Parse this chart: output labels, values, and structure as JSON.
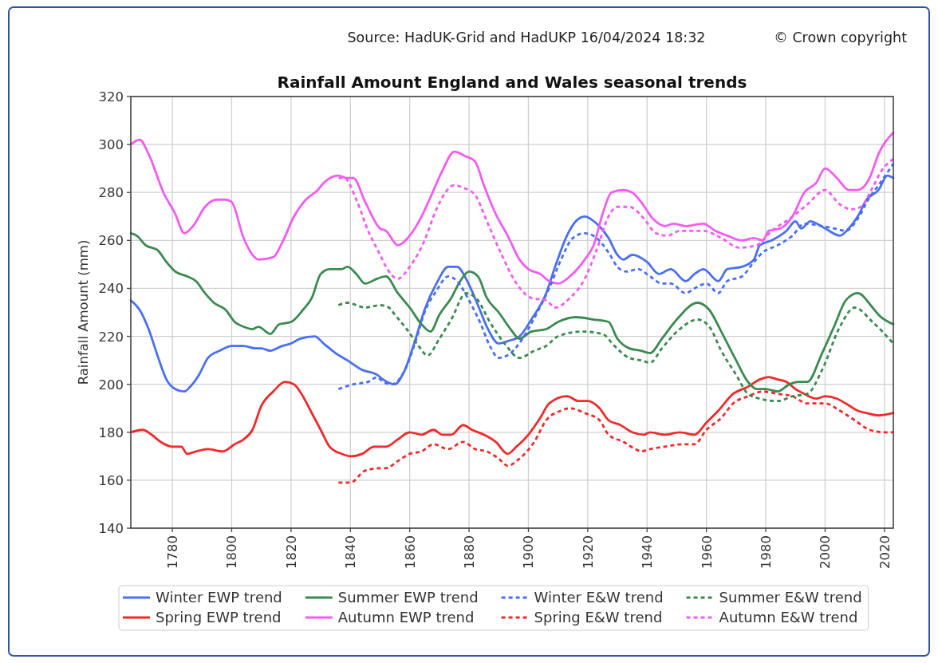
{
  "chart_data": {
    "type": "line",
    "title": "Rainfall Amount England and Wales seasonal trends",
    "ylabel": "Rainfall Amount (mm)",
    "annotations": [
      "Source: HadUK-Grid and HadUKP 16/04/2024 18:32",
      "© Crown copyright"
    ],
    "xlim": [
      1766,
      2023
    ],
    "xticks": [
      1780,
      1800,
      1820,
      1840,
      1860,
      1880,
      1900,
      1920,
      1940,
      1960,
      1980,
      2000,
      2020
    ],
    "ylim": [
      140,
      320
    ],
    "yticks": [
      140,
      160,
      180,
      200,
      220,
      240,
      260,
      280,
      300,
      320
    ],
    "grid": true,
    "legend": "bottom",
    "series": [
      {
        "name": "Winter EWP trend",
        "color": "#4a6ff0",
        "line_style": "solid",
        "x": [
          1766,
          1769,
          1772,
          1775,
          1778,
          1781,
          1784,
          1786,
          1789,
          1792,
          1796,
          1800,
          1804,
          1808,
          1810,
          1813,
          1817,
          1820,
          1823,
          1828,
          1831,
          1835,
          1839,
          1844,
          1849,
          1851,
          1855,
          1858,
          1862,
          1865,
          1869,
          1873,
          1876,
          1879,
          1883,
          1886,
          1890,
          1893,
          1897,
          1901,
          1906,
          1909,
          1913,
          1916,
          1919,
          1923,
          1927,
          1930,
          1932,
          1935,
          1940,
          1944,
          1948,
          1953,
          1956,
          1959,
          1964,
          1967,
          1972,
          1976,
          1978,
          1982,
          1987,
          1990,
          1992,
          1995,
          2000,
          2005,
          2008,
          2011,
          2014,
          2018,
          2021,
          2023
        ],
        "values": [
          235,
          231,
          223,
          212,
          202,
          198,
          197,
          199,
          204,
          211,
          214,
          216,
          216,
          215,
          215,
          214,
          216,
          217,
          219,
          220,
          217,
          213,
          210,
          206,
          204,
          202,
          200,
          205,
          219,
          231,
          242,
          249,
          249,
          244,
          233,
          224,
          217,
          218,
          220,
          227,
          238,
          249,
          262,
          268,
          270,
          267,
          261,
          254,
          252,
          254,
          251,
          246,
          248,
          243,
          246,
          248,
          243,
          248,
          249,
          252,
          258,
          260,
          264,
          268,
          265,
          268,
          265,
          262,
          265,
          270,
          277,
          281,
          287,
          286
        ]
      },
      {
        "name": "Spring EWP trend",
        "color": "#ee2b2b",
        "line_style": "solid",
        "x": [
          1766,
          1770,
          1773,
          1776,
          1780,
          1783,
          1785,
          1788,
          1792,
          1797,
          1801,
          1804,
          1807,
          1810,
          1814,
          1818,
          1821,
          1824,
          1827,
          1830,
          1833,
          1837,
          1840,
          1844,
          1848,
          1852,
          1856,
          1860,
          1864,
          1868,
          1871,
          1874,
          1878,
          1881,
          1885,
          1889,
          1893,
          1896,
          1900,
          1904,
          1907,
          1913,
          1917,
          1920,
          1924,
          1927,
          1931,
          1935,
          1939,
          1941,
          1946,
          1951,
          1956,
          1960,
          1964,
          1969,
          1974,
          1978,
          1981,
          1984,
          1987,
          1990,
          1993,
          1997,
          2000,
          2004,
          2007,
          2011,
          2014,
          2018,
          2023
        ],
        "values": [
          180,
          181,
          179,
          176,
          174,
          174,
          171,
          172,
          173,
          172,
          175,
          177,
          181,
          191,
          197,
          201,
          200,
          195,
          188,
          181,
          174,
          171,
          170,
          171,
          174,
          174,
          177,
          180,
          179,
          181,
          179,
          179,
          183,
          181,
          179,
          176,
          171,
          174,
          179,
          186,
          192,
          195,
          193,
          193,
          190,
          185,
          183,
          180,
          179,
          180,
          179,
          180,
          179,
          184,
          189,
          196,
          199,
          202,
          203,
          202,
          201,
          198,
          196,
          194,
          195,
          194,
          192,
          189,
          188,
          187,
          188
        ]
      },
      {
        "name": "Summer EWP trend",
        "color": "#3a8a50",
        "line_style": "solid",
        "x": [
          1766,
          1768,
          1771,
          1775,
          1778,
          1781,
          1785,
          1788,
          1791,
          1794,
          1798,
          1801,
          1804,
          1807,
          1809,
          1813,
          1816,
          1820,
          1824,
          1827,
          1830,
          1833,
          1837,
          1839,
          1842,
          1845,
          1849,
          1852,
          1856,
          1860,
          1864,
          1867,
          1870,
          1874,
          1877,
          1880,
          1883,
          1886,
          1890,
          1894,
          1897,
          1901,
          1906,
          1910,
          1916,
          1922,
          1927,
          1930,
          1934,
          1938,
          1941,
          1945,
          1950,
          1957,
          1961,
          1965,
          1970,
          1974,
          1977,
          1980,
          1984,
          1988,
          1991,
          1994,
          1999,
          2003,
          2007,
          2011,
          2016,
          2018,
          2023
        ],
        "values": [
          263,
          262,
          258,
          256,
          251,
          247,
          245,
          243,
          238,
          234,
          231,
          226,
          224,
          223,
          224,
          221,
          225,
          226,
          231,
          236,
          246,
          248,
          248,
          249,
          246,
          242,
          244,
          245,
          238,
          232,
          225,
          222,
          229,
          236,
          243,
          247,
          245,
          236,
          230,
          223,
          219,
          222,
          223,
          226,
          228,
          227,
          226,
          219,
          215,
          214,
          213,
          219,
          227,
          234,
          231,
          222,
          210,
          201,
          198,
          198,
          197,
          200,
          201,
          201,
          213,
          224,
          235,
          238,
          232,
          229,
          225
        ]
      },
      {
        "name": "Autumn EWP trend",
        "color": "#f25cf0",
        "line_style": "solid",
        "x": [
          1766,
          1769,
          1772,
          1777,
          1781,
          1784,
          1787,
          1791,
          1795,
          1798,
          1800,
          1804,
          1807,
          1809,
          1814,
          1817,
          1821,
          1825,
          1829,
          1831,
          1836,
          1839,
          1841,
          1845,
          1850,
          1852,
          1856,
          1860,
          1864,
          1867,
          1871,
          1875,
          1879,
          1882,
          1885,
          1889,
          1893,
          1897,
          1900,
          1904,
          1907,
          1910,
          1914,
          1919,
          1922,
          1925,
          1928,
          1932,
          1935,
          1938,
          1942,
          1946,
          1949,
          1953,
          1959,
          1963,
          1967,
          1972,
          1976,
          1979,
          1981,
          1985,
          1989,
          1993,
          1997,
          2000,
          2004,
          2008,
          2011,
          2015,
          2018,
          2023
        ],
        "values": [
          300,
          302,
          296,
          280,
          271,
          263,
          266,
          274,
          277,
          277,
          276,
          261,
          254,
          252,
          253,
          259,
          270,
          277,
          281,
          284,
          287,
          286,
          286,
          276,
          265,
          264,
          258,
          262,
          270,
          278,
          289,
          297,
          295,
          293,
          283,
          271,
          262,
          252,
          248,
          246,
          243,
          242,
          245,
          252,
          258,
          271,
          280,
          281,
          280,
          276,
          269,
          266,
          267,
          266,
          267,
          264,
          262,
          260,
          261,
          260,
          264,
          265,
          270,
          280,
          284,
          290,
          286,
          281,
          281,
          286,
          296,
          305
        ]
      },
      {
        "name": "Winter E&W trend",
        "color": "#4a6ff0",
        "line_style": "dashed",
        "x": [
          1836,
          1841,
          1846,
          1849,
          1851,
          1854,
          1858,
          1862,
          1865,
          1869,
          1873,
          1876,
          1880,
          1884,
          1887,
          1890,
          1894,
          1898,
          1903,
          1907,
          1911,
          1915,
          1919,
          1923,
          1927,
          1930,
          1933,
          1937,
          1941,
          1945,
          1948,
          1953,
          1956,
          1960,
          1964,
          1967,
          1972,
          1976,
          1979,
          1984,
          1989,
          1993,
          1999,
          2003,
          2007,
          2011,
          2015,
          2018,
          2023
        ],
        "values": [
          198,
          200,
          201,
          203,
          201,
          200,
          205,
          218,
          230,
          239,
          245,
          243,
          235,
          225,
          216,
          211,
          213,
          219,
          230,
          240,
          252,
          261,
          263,
          261,
          255,
          249,
          247,
          248,
          245,
          242,
          242,
          238,
          240,
          242,
          238,
          243,
          245,
          251,
          255,
          258,
          262,
          267,
          266,
          265,
          264,
          269,
          278,
          283,
          292
        ]
      },
      {
        "name": "Spring E&W trend",
        "color": "#ee2b2b",
        "line_style": "dashed",
        "x": [
          1836,
          1840,
          1845,
          1850,
          1852,
          1856,
          1860,
          1864,
          1868,
          1873,
          1878,
          1882,
          1886,
          1890,
          1893,
          1897,
          1902,
          1906,
          1911,
          1914,
          1919,
          1924,
          1927,
          1932,
          1936,
          1938,
          1941,
          1946,
          1952,
          1956,
          1960,
          1965,
          1969,
          1974,
          1979,
          1984,
          1989,
          1994,
          2000,
          2005,
          2010,
          2015,
          2020,
          2023
        ],
        "values": [
          159,
          159,
          164,
          165,
          165,
          168,
          171,
          172,
          175,
          173,
          176,
          173,
          172,
          169,
          166,
          169,
          176,
          185,
          189,
          190,
          188,
          185,
          179,
          176,
          173,
          172,
          173,
          174,
          175,
          175,
          181,
          186,
          192,
          195,
          197,
          196,
          195,
          192,
          192,
          189,
          185,
          181,
          180,
          180
        ]
      },
      {
        "name": "Summer E&W trend",
        "color": "#3a8a50",
        "line_style": "dashed",
        "x": [
          1836,
          1839,
          1845,
          1850,
          1853,
          1855,
          1859,
          1863,
          1866,
          1870,
          1874,
          1879,
          1883,
          1887,
          1892,
          1897,
          1902,
          1906,
          1910,
          1918,
          1925,
          1929,
          1934,
          1938,
          1941,
          1945,
          1951,
          1957,
          1961,
          1965,
          1970,
          1974,
          1978,
          1984,
          1989,
          1994,
          1999,
          2005,
          2010,
          2016,
          2023
        ],
        "values": [
          233,
          234,
          232,
          233,
          232,
          229,
          223,
          216,
          212,
          219,
          227,
          238,
          235,
          226,
          217,
          211,
          214,
          216,
          220,
          222,
          221,
          216,
          211,
          210,
          209,
          215,
          223,
          227,
          224,
          214,
          204,
          196,
          194,
          193,
          195,
          196,
          206,
          224,
          232,
          226,
          217
        ]
      },
      {
        "name": "Autumn E&W trend",
        "color": "#f25cf0",
        "line_style": "dashed",
        "x": [
          1836,
          1838,
          1842,
          1846,
          1850,
          1852,
          1856,
          1860,
          1865,
          1869,
          1875,
          1878,
          1882,
          1886,
          1891,
          1896,
          1901,
          1906,
          1909,
          1914,
          1919,
          1923,
          1927,
          1930,
          1934,
          1939,
          1943,
          1947,
          1951,
          1959,
          1965,
          1971,
          1977,
          1982,
          1988,
          1994,
          2000,
          2005,
          2009,
          2012,
          2016,
          2019,
          2023
        ],
        "values": [
          286,
          286,
          277,
          264,
          254,
          249,
          244,
          249,
          260,
          273,
          283,
          282,
          279,
          268,
          254,
          242,
          236,
          235,
          232,
          236,
          244,
          256,
          270,
          274,
          274,
          269,
          263,
          262,
          264,
          264,
          261,
          257,
          258,
          264,
          269,
          275,
          281,
          275,
          273,
          274,
          282,
          289,
          294
        ]
      }
    ]
  }
}
